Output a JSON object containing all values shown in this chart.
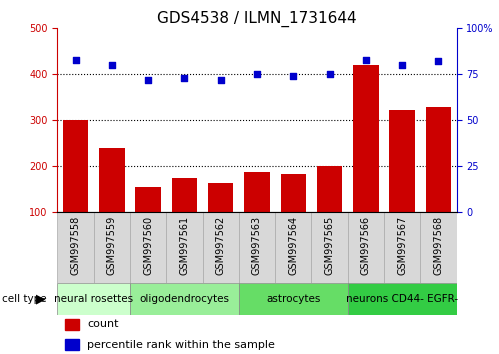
{
  "title": "GDS4538 / ILMN_1731644",
  "samples": [
    "GSM997558",
    "GSM997559",
    "GSM997560",
    "GSM997561",
    "GSM997562",
    "GSM997563",
    "GSM997564",
    "GSM997565",
    "GSM997566",
    "GSM997567",
    "GSM997568"
  ],
  "counts": [
    300,
    240,
    155,
    175,
    163,
    187,
    183,
    200,
    420,
    323,
    328
  ],
  "percentile_ranks": [
    83,
    80,
    72,
    73,
    72,
    75,
    74,
    75,
    83,
    80,
    82
  ],
  "cell_types": [
    {
      "label": "neural rosettes",
      "start": 0,
      "end": 2,
      "color": "#ccffcc"
    },
    {
      "label": "oligodendrocytes",
      "start": 2,
      "end": 5,
      "color": "#99ee99"
    },
    {
      "label": "astrocytes",
      "start": 5,
      "end": 8,
      "color": "#66dd66"
    },
    {
      "label": "neurons CD44- EGFR-",
      "start": 8,
      "end": 11,
      "color": "#33cc44"
    }
  ],
  "bar_color": "#cc0000",
  "dot_color": "#0000cc",
  "left_ylim": [
    100,
    500
  ],
  "left_yticks": [
    100,
    200,
    300,
    400,
    500
  ],
  "right_ylim": [
    0,
    100
  ],
  "right_yticks": [
    0,
    25,
    50,
    75,
    100
  ],
  "right_yticklabels": [
    "0",
    "25",
    "50",
    "75",
    "100%"
  ],
  "grid_lines": [
    200,
    300,
    400
  ],
  "bg_color": "#ffffff",
  "plot_bg_color": "#ffffff",
  "label_box_color": "#d8d8d8",
  "tick_label_fontsize": 7,
  "title_fontsize": 11,
  "legend_fontsize": 8,
  "cell_type_label_fontsize": 7.5
}
